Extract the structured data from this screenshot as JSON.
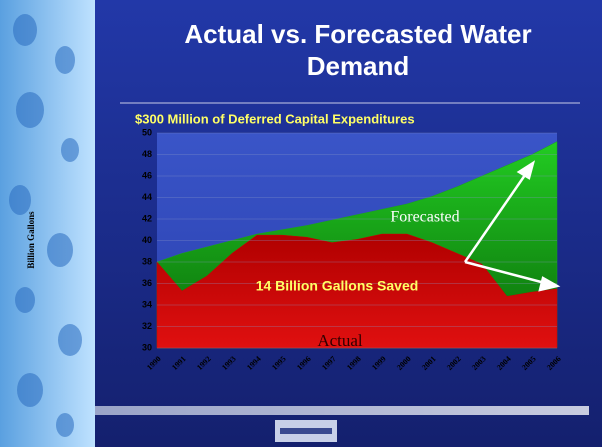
{
  "chart_data": {
    "type": "area",
    "title": "Actual vs. Forecasted Water Demand",
    "subtitle": "$300 Million of Deferred Capital Expenditures",
    "y_label": "Billion Gallons",
    "categories": [
      "1990",
      "1991",
      "1992",
      "1993",
      "1994",
      "1995",
      "1996",
      "1997",
      "1998",
      "1999",
      "2000",
      "2001",
      "2002",
      "2003",
      "2004",
      "2005",
      "2006"
    ],
    "series": [
      {
        "name": "Forecasted",
        "color": "#1aa31a",
        "values": [
          38,
          38.8,
          39.4,
          40,
          40.6,
          41,
          41.4,
          41.9,
          42.4,
          42.9,
          43.4,
          44.1,
          45,
          46,
          47,
          48,
          49.2
        ]
      },
      {
        "name": "Actual",
        "color": "#cc0000",
        "values": [
          38,
          35.3,
          36.7,
          38.8,
          40.5,
          40.5,
          40.3,
          39.8,
          40.1,
          40.6,
          40.6,
          39.8,
          38.8,
          37.8,
          34.8,
          35.2,
          35.5
        ]
      }
    ],
    "annotations": [
      "14 Billion Gallons Saved"
    ],
    "ylim": [
      30,
      50
    ],
    "yticks": [
      30,
      32,
      34,
      36,
      38,
      40,
      42,
      44,
      46,
      48,
      50
    ],
    "grid": true
  }
}
